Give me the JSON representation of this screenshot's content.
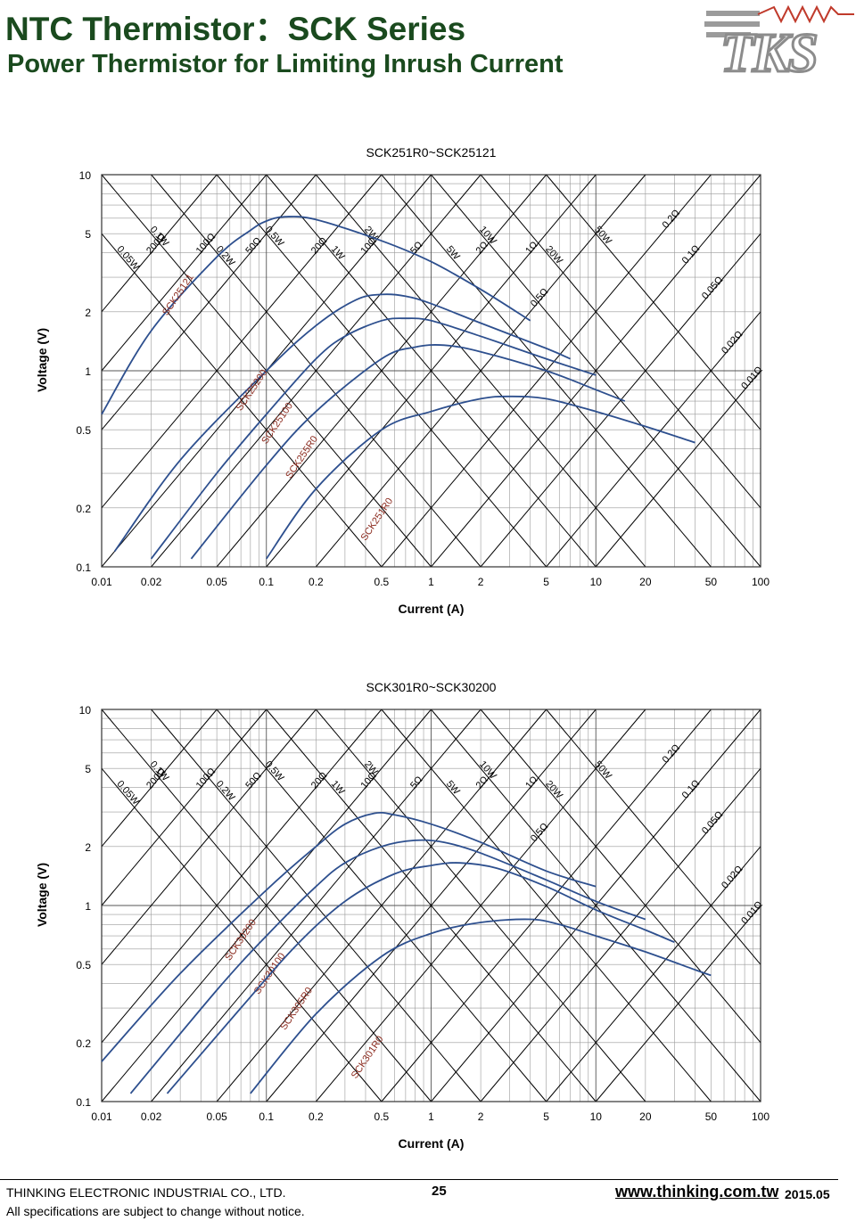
{
  "header": {
    "title": "NTC Thermistor：SCK Series",
    "subtitle": "Power Thermistor for Limiting Inrush Current"
  },
  "logo": {
    "text": "TKS"
  },
  "colors": {
    "curve": "#2d4f8e",
    "label": "#8b2a1e",
    "grid": "#9a9a9a",
    "diag": "#000000",
    "title": "#1a4a1e"
  },
  "footer": {
    "company": "THINKING ELECTRONIC INDUSTRIAL CO., LTD.",
    "note": "All specifications are subject to change without notice.",
    "page": "25",
    "website": "www.thinking.com.tw",
    "date": "2015.05"
  },
  "chart_data": [
    {
      "type": "line",
      "title": "SCK251R0~SCK25121",
      "xlabel": "Current (A)",
      "ylabel": "Voltage (V)",
      "xscale": "log",
      "yscale": "log",
      "xlim": [
        0.01,
        100
      ],
      "ylim": [
        0.1,
        10
      ],
      "xticks": [
        "0.01",
        "0.02",
        "0.05",
        "0.1",
        "0.2",
        "0.5",
        "1",
        "2",
        "5",
        "10",
        "20",
        "50",
        "100"
      ],
      "yticks": [
        "0.1",
        "0.2",
        "0.5",
        "1",
        "2",
        "5",
        "10"
      ],
      "grid": true,
      "power_lines": [
        {
          "label": "0.05W",
          "value": 0.05
        },
        {
          "label": "0.1W",
          "value": 0.1
        },
        {
          "label": "0.2W",
          "value": 0.2
        },
        {
          "label": "0.5W",
          "value": 0.5
        },
        {
          "label": "1W",
          "value": 1
        },
        {
          "label": "2W",
          "value": 2
        },
        {
          "label": "5W",
          "value": 5
        },
        {
          "label": "10W",
          "value": 10
        },
        {
          "label": "20W",
          "value": 20
        },
        {
          "label": "50W",
          "value": 50
        }
      ],
      "resistance_lines": [
        {
          "label": "200Ω",
          "value": 200
        },
        {
          "label": "100Ω",
          "value": 100
        },
        {
          "label": "50Ω",
          "value": 50
        },
        {
          "label": "20Ω",
          "value": 20
        },
        {
          "label": "10Ω",
          "value": 10
        },
        {
          "label": "5Ω",
          "value": 5
        },
        {
          "label": "2Ω",
          "value": 2
        },
        {
          "label": "1Ω",
          "value": 1
        },
        {
          "label": "0.5Ω",
          "value": 0.5
        },
        {
          "label": "0.2Ω",
          "value": 0.2
        },
        {
          "label": "0.1Ω",
          "value": 0.1
        },
        {
          "label": "0.05Ω",
          "value": 0.05
        },
        {
          "label": "0.02Ω",
          "value": 0.02
        },
        {
          "label": "0.01Ω",
          "value": 0.01
        }
      ],
      "series": [
        {
          "name": "SCK25121",
          "points": [
            [
              0.01,
              0.6
            ],
            [
              0.02,
              1.6
            ],
            [
              0.05,
              3.8
            ],
            [
              0.08,
              5.2
            ],
            [
              0.1,
              5.8
            ],
            [
              0.13,
              6.1
            ],
            [
              0.2,
              5.9
            ],
            [
              0.5,
              4.6
            ],
            [
              1,
              3.6
            ],
            [
              2,
              2.6
            ],
            [
              4,
              1.8
            ]
          ],
          "label_at": [
            0.025,
            1.9
          ]
        },
        {
          "name": "SCK25200",
          "points": [
            [
              0.012,
              0.12
            ],
            [
              0.03,
              0.35
            ],
            [
              0.1,
              1.0
            ],
            [
              0.2,
              1.7
            ],
            [
              0.35,
              2.3
            ],
            [
              0.5,
              2.45
            ],
            [
              0.7,
              2.4
            ],
            [
              1,
              2.2
            ],
            [
              2,
              1.75
            ],
            [
              5,
              1.3
            ],
            [
              7,
              1.15
            ]
          ],
          "label_at": [
            0.07,
            0.62
          ]
        },
        {
          "name": "SCK25100",
          "points": [
            [
              0.02,
              0.11
            ],
            [
              0.05,
              0.3
            ],
            [
              0.1,
              0.6
            ],
            [
              0.2,
              1.15
            ],
            [
              0.3,
              1.5
            ],
            [
              0.5,
              1.8
            ],
            [
              0.7,
              1.85
            ],
            [
              1,
              1.8
            ],
            [
              2,
              1.5
            ],
            [
              5,
              1.15
            ],
            [
              10,
              0.95
            ]
          ],
          "label_at": [
            0.1,
            0.42
          ]
        },
        {
          "name": "SCK255R0",
          "points": [
            [
              0.035,
              0.11
            ],
            [
              0.1,
              0.33
            ],
            [
              0.2,
              0.62
            ],
            [
              0.5,
              1.15
            ],
            [
              0.8,
              1.32
            ],
            [
              1.2,
              1.35
            ],
            [
              2,
              1.25
            ],
            [
              5,
              1.0
            ],
            [
              10,
              0.8
            ],
            [
              15,
              0.7
            ]
          ],
          "label_at": [
            0.14,
            0.28
          ]
        },
        {
          "name": "SCK251R0",
          "points": [
            [
              0.1,
              0.11
            ],
            [
              0.2,
              0.25
            ],
            [
              0.5,
              0.5
            ],
            [
              1,
              0.62
            ],
            [
              2,
              0.72
            ],
            [
              3,
              0.74
            ],
            [
              5,
              0.72
            ],
            [
              10,
              0.62
            ],
            [
              20,
              0.52
            ],
            [
              40,
              0.43
            ]
          ],
          "label_at": [
            0.4,
            0.135
          ]
        }
      ]
    },
    {
      "type": "line",
      "title": "SCK301R0~SCK30200",
      "xlabel": "Current (A)",
      "ylabel": "Voltage (V)",
      "xscale": "log",
      "yscale": "log",
      "xlim": [
        0.01,
        100
      ],
      "ylim": [
        0.1,
        10
      ],
      "xticks": [
        "0.01",
        "0.02",
        "0.05",
        "0.1",
        "0.2",
        "0.5",
        "1",
        "2",
        "5",
        "10",
        "20",
        "50",
        "100"
      ],
      "yticks": [
        "0.1",
        "0.2",
        "0.5",
        "1",
        "2",
        "5",
        "10"
      ],
      "grid": true,
      "power_lines": [
        {
          "label": "0.05W",
          "value": 0.05
        },
        {
          "label": "0.1W",
          "value": 0.1
        },
        {
          "label": "0.2W",
          "value": 0.2
        },
        {
          "label": "0.5W",
          "value": 0.5
        },
        {
          "label": "1W",
          "value": 1
        },
        {
          "label": "2W",
          "value": 2
        },
        {
          "label": "5W",
          "value": 5
        },
        {
          "label": "10W",
          "value": 10
        },
        {
          "label": "20W",
          "value": 20
        },
        {
          "label": "50W",
          "value": 50
        }
      ],
      "resistance_lines": [
        {
          "label": "200Ω",
          "value": 200
        },
        {
          "label": "100Ω",
          "value": 100
        },
        {
          "label": "50Ω",
          "value": 50
        },
        {
          "label": "20Ω",
          "value": 20
        },
        {
          "label": "10Ω",
          "value": 10
        },
        {
          "label": "5Ω",
          "value": 5
        },
        {
          "label": "2Ω",
          "value": 2
        },
        {
          "label": "1Ω",
          "value": 1
        },
        {
          "label": "0.5Ω",
          "value": 0.5
        },
        {
          "label": "0.2Ω",
          "value": 0.2
        },
        {
          "label": "0.1Ω",
          "value": 0.1
        },
        {
          "label": "0.05Ω",
          "value": 0.05
        },
        {
          "label": "0.02Ω",
          "value": 0.02
        },
        {
          "label": "0.01Ω",
          "value": 0.01
        }
      ],
      "series": [
        {
          "name": "SCK30200",
          "points": [
            [
              0.01,
              0.16
            ],
            [
              0.03,
              0.45
            ],
            [
              0.1,
              1.2
            ],
            [
              0.2,
              2.0
            ],
            [
              0.3,
              2.6
            ],
            [
              0.45,
              2.95
            ],
            [
              0.6,
              2.9
            ],
            [
              1,
              2.6
            ],
            [
              2,
              2.1
            ],
            [
              5,
              1.5
            ],
            [
              10,
              1.25
            ]
          ],
          "label_at": [
            0.06,
            0.52
          ]
        },
        {
          "name": "SCK30100",
          "points": [
            [
              0.015,
              0.11
            ],
            [
              0.05,
              0.37
            ],
            [
              0.1,
              0.7
            ],
            [
              0.2,
              1.25
            ],
            [
              0.3,
              1.65
            ],
            [
              0.5,
              2.0
            ],
            [
              0.8,
              2.15
            ],
            [
              1.2,
              2.1
            ],
            [
              2,
              1.85
            ],
            [
              5,
              1.35
            ],
            [
              10,
              1.05
            ],
            [
              20,
              0.85
            ]
          ],
          "label_at": [
            0.09,
            0.35
          ]
        },
        {
          "name": "SCK305R0",
          "points": [
            [
              0.025,
              0.11
            ],
            [
              0.07,
              0.3
            ],
            [
              0.15,
              0.62
            ],
            [
              0.3,
              1.05
            ],
            [
              0.6,
              1.45
            ],
            [
              1,
              1.6
            ],
            [
              1.5,
              1.65
            ],
            [
              2.5,
              1.55
            ],
            [
              5,
              1.25
            ],
            [
              10,
              0.95
            ],
            [
              20,
              0.75
            ],
            [
              30,
              0.65
            ]
          ],
          "label_at": [
            0.13,
            0.23
          ]
        },
        {
          "name": "SCK301R0",
          "points": [
            [
              0.08,
              0.11
            ],
            [
              0.2,
              0.28
            ],
            [
              0.5,
              0.55
            ],
            [
              1,
              0.72
            ],
            [
              2,
              0.82
            ],
            [
              4,
              0.85
            ],
            [
              6,
              0.8
            ],
            [
              10,
              0.7
            ],
            [
              20,
              0.58
            ],
            [
              40,
              0.47
            ],
            [
              50,
              0.44
            ]
          ],
          "label_at": [
            0.35,
            0.13
          ]
        }
      ]
    }
  ]
}
